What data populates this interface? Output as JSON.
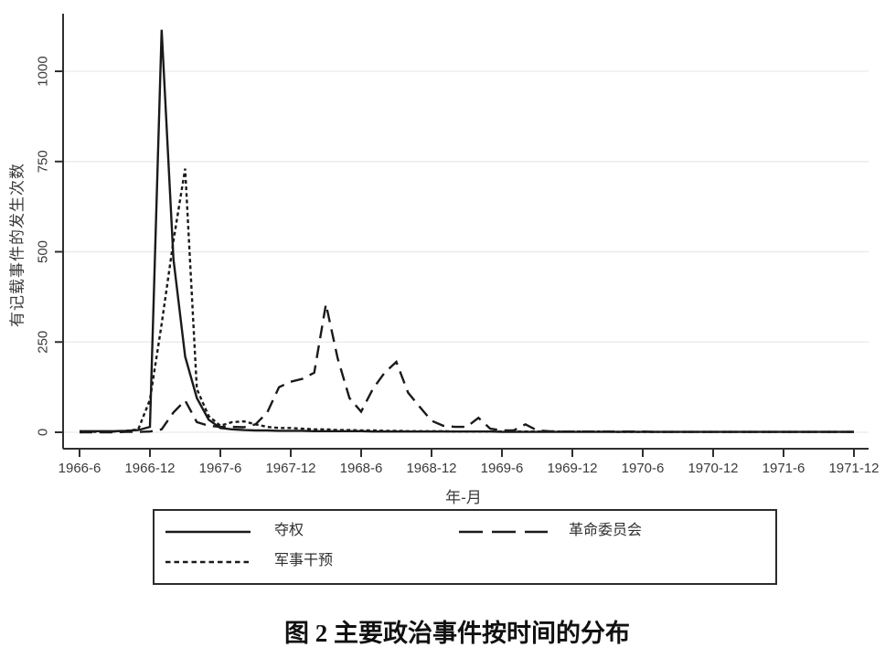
{
  "figure": {
    "caption": "图 2  主要政治事件按时间的分布"
  },
  "legend": {
    "items": [
      {
        "label": "夺权",
        "line_style": "solid"
      },
      {
        "label": "革命委员会",
        "line_style": "long-dash"
      },
      {
        "label": "军事干预",
        "line_style": "short-dash"
      }
    ]
  },
  "chart_data": {
    "type": "line",
    "title": "图 2 主要政治事件按时间的分布",
    "xlabel": "年-月",
    "ylabel": "有记载事件的发生次数",
    "x_unit": "monthly points from 1966-6 to 1971-12 (67 points)",
    "x_start": "1966-6",
    "x_end": "1971-12",
    "x_interval_months": 1,
    "x_tick_labels": [
      "1966-6",
      "1966-12",
      "1967-6",
      "1967-12",
      "1968-6",
      "1968-12",
      "1969-6",
      "1969-12",
      "1970-6",
      "1970-12",
      "1971-6",
      "1971-12"
    ],
    "x_ticks_every_n_months": 6,
    "yticks": [
      0,
      250,
      500,
      750,
      1000
    ],
    "ytick_labels": [
      "0",
      "250",
      "500",
      "750",
      "1000"
    ],
    "ylim": [
      0,
      1160
    ],
    "grid": "horizontal light gridlines at each y tick",
    "legend_position": "boxed legend below plot, two rows",
    "colors": {
      "line": "#1a1a1a",
      "grid": "#e9e9e9",
      "axis": "#2f2f2f",
      "tick_text": "#3a3a3a"
    },
    "series": [
      {
        "name": "夺权",
        "id": "power-seizure",
        "style": "solid",
        "values": [
          3,
          3,
          3,
          3,
          4,
          6,
          15,
          1115,
          480,
          210,
          95,
          35,
          12,
          8,
          6,
          5,
          5,
          4,
          4,
          4,
          3,
          3,
          3,
          3,
          3,
          2,
          2,
          2,
          2,
          2,
          2,
          2,
          2,
          2,
          2,
          2,
          1,
          1,
          1,
          1,
          1,
          1,
          1,
          1,
          1,
          1,
          1,
          1,
          1,
          1,
          1,
          1,
          1,
          1,
          1,
          1,
          1,
          1,
          1,
          1,
          1,
          1,
          1,
          1,
          1,
          1,
          1
        ]
      },
      {
        "name": "革命委员会",
        "id": "revolutionary-committee",
        "style": "long-dash",
        "values": [
          0,
          0,
          0,
          0,
          1,
          1,
          2,
          8,
          55,
          88,
          28,
          18,
          15,
          15,
          14,
          22,
          55,
          125,
          140,
          148,
          165,
          355,
          205,
          95,
          57,
          120,
          165,
          195,
          110,
          70,
          32,
          18,
          15,
          15,
          40,
          10,
          5,
          5,
          22,
          5,
          3,
          2,
          2,
          2,
          2,
          2,
          2,
          2,
          2,
          1,
          1,
          1,
          1,
          1,
          1,
          1,
          1,
          1,
          1,
          1,
          1,
          1,
          1,
          1,
          1,
          1,
          1
        ]
      },
      {
        "name": "军事干预",
        "id": "military-intervention",
        "style": "short-dash",
        "values": [
          1,
          1,
          1,
          2,
          4,
          8,
          90,
          300,
          530,
          730,
          120,
          45,
          18,
          28,
          30,
          22,
          15,
          12,
          12,
          10,
          8,
          8,
          6,
          6,
          5,
          5,
          4,
          4,
          3,
          3,
          3,
          3,
          2,
          2,
          2,
          2,
          2,
          2,
          2,
          2,
          2,
          2,
          2,
          2,
          2,
          2,
          1,
          1,
          1,
          1,
          1,
          1,
          1,
          1,
          1,
          1,
          1,
          1,
          1,
          1,
          1,
          1,
          1,
          1,
          1,
          1,
          1
        ]
      }
    ]
  }
}
